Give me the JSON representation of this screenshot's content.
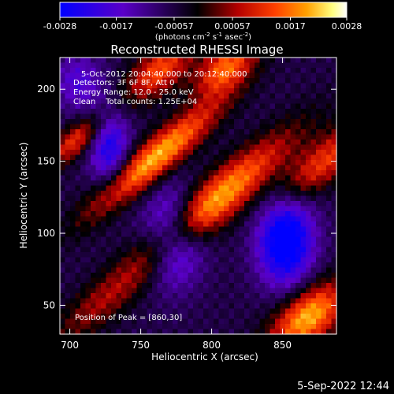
{
  "chart_data": {
    "type": "heatmap",
    "title": "Reconstructed RHESSI Image",
    "xlabel": "Heliocentric X (arcsec)",
    "ylabel": "Heliocentric Y (arcsec)",
    "xlim": [
      693,
      888
    ],
    "ylim": [
      30,
      222
    ],
    "x_ticks": [
      700,
      750,
      800,
      850
    ],
    "y_ticks": [
      50,
      100,
      150,
      200
    ],
    "colorbar": {
      "ticks": [
        -0.0028,
        -0.0017,
        -0.00057,
        0.00057,
        0.0017,
        0.0028
      ],
      "tick_labels": [
        "-0.0028",
        "-0.0017",
        "-0.00057",
        "0.00057",
        "0.0017",
        "0.0028"
      ],
      "range": [
        -0.0028,
        0.0028
      ],
      "units_prefix": "(photons cm",
      "units_exp1": "-2",
      "units_mid": " s",
      "units_exp2": "-1",
      "units_mid2": " asec",
      "units_exp3": "-2",
      "units_suffix": ")",
      "colormap": [
        "#0000ff",
        "#5a00c8",
        "#000000",
        "#b40000",
        "#ff4000",
        "#ffa000",
        "#ffff80",
        "#ffffff"
      ]
    },
    "annotations": [
      "5-Oct-2012 20:04:40.000 to 20:12:40.000",
      "Detectors: 3F 6F 8F, Att 0",
      "Energy Range: 12.0 - 25.0 keV",
      "Clean    Total counts: 1.25E+04"
    ],
    "peak_label": "Position of Peak = [860,30]",
    "blobs": [
      {
        "x": 760,
        "y": 152,
        "sx": 9,
        "sy": 40,
        "angle": -50,
        "amp": 0.0028
      },
      {
        "x": 802,
        "y": 122,
        "sx": 11,
        "sy": 48,
        "angle": -50,
        "amp": 0.0027
      },
      {
        "x": 868,
        "y": 42,
        "sx": 12,
        "sy": 22,
        "angle": -50,
        "amp": 0.0028
      },
      {
        "x": 705,
        "y": 165,
        "sx": 7,
        "sy": 18,
        "angle": -50,
        "amp": 0.0018
      },
      {
        "x": 763,
        "y": 213,
        "sx": 10,
        "sy": 20,
        "angle": -50,
        "amp": 0.002
      },
      {
        "x": 810,
        "y": 215,
        "sx": 10,
        "sy": 18,
        "angle": -50,
        "amp": 0.0022
      },
      {
        "x": 880,
        "y": 150,
        "sx": 10,
        "sy": 30,
        "angle": -50,
        "amp": 0.0018
      },
      {
        "x": 720,
        "y": 50,
        "sx": 10,
        "sy": 30,
        "angle": -50,
        "amp": 0.001
      },
      {
        "x": 728,
        "y": 160,
        "sx": 10,
        "sy": 20,
        "angle": 0,
        "amp": -0.0018
      },
      {
        "x": 773,
        "y": 97,
        "sx": 14,
        "sy": 22,
        "angle": 0,
        "amp": -0.0022
      },
      {
        "x": 852,
        "y": 95,
        "sx": 14,
        "sy": 22,
        "angle": 0,
        "amp": -0.0028
      },
      {
        "x": 706,
        "y": 205,
        "sx": 12,
        "sy": 14,
        "angle": 0,
        "amp": -0.0012
      }
    ],
    "background": -0.0006,
    "grid": false
  },
  "footer": {
    "timestamp": "5-Sep-2022 12:44"
  }
}
